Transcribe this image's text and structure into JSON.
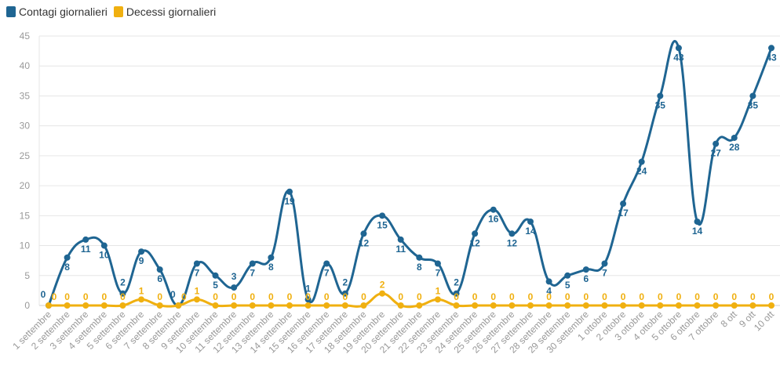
{
  "chart_data": {
    "type": "line",
    "title": "",
    "xlabel": "",
    "ylabel": "",
    "ylim": [
      0,
      45
    ],
    "yticks": [
      0,
      5,
      10,
      15,
      20,
      25,
      30,
      35,
      40,
      45
    ],
    "grid": true,
    "legend_placement": "top-left",
    "categories": [
      "1 settembre",
      "2 settembre",
      "3 settembre",
      "4 settembre",
      "5 settembre",
      "6 settembre",
      "7 settembre",
      "8 settembre",
      "9 settembre",
      "10 settembre",
      "11 settembre",
      "12 settembre",
      "13 settembre",
      "14 settembre",
      "15 settembre",
      "16 settembre",
      "17 settembre",
      "18 settembre",
      "19 settembre",
      "20 settembre",
      "21 settembre",
      "22 settembre",
      "23 settembre",
      "24 settembre",
      "25 settembre",
      "26 settembre",
      "27 settembre",
      "28 settembre",
      "29 settembre",
      "30 settembre",
      "1 ottobre",
      "2 ottobre",
      "3 ottobre",
      "4 ottobre",
      "5 ottobre",
      "6 ottobre",
      "7 ottobre",
      "8 ott",
      "9 ott",
      "10 ott"
    ],
    "series": [
      {
        "name": "Contagi giornalieri",
        "color": "#1f6592",
        "values": [
          0,
          8,
          11,
          10,
          2,
          9,
          6,
          0,
          7,
          5,
          3,
          7,
          8,
          19,
          1,
          7,
          2,
          12,
          15,
          11,
          8,
          7,
          2,
          12,
          16,
          12,
          14,
          4,
          5,
          6,
          7,
          17,
          24,
          35,
          43,
          14,
          27,
          28,
          35,
          43
        ]
      },
      {
        "name": "Decessi giornalieri",
        "color": "#f0b010",
        "values": [
          0,
          0,
          0,
          0,
          0,
          1,
          0,
          0,
          1,
          0,
          0,
          0,
          0,
          0,
          0,
          0,
          0,
          0,
          2,
          0,
          0,
          1,
          0,
          0,
          0,
          0,
          0,
          0,
          0,
          0,
          0,
          0,
          0,
          0,
          0,
          0,
          0,
          0,
          0,
          0
        ]
      }
    ]
  }
}
